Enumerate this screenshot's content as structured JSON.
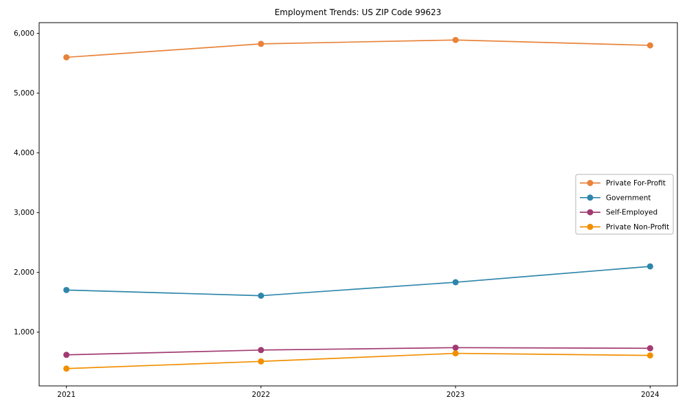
{
  "chart_data": {
    "type": "line",
    "title": "Employment Trends: US ZIP Code 99623",
    "x": [
      2021,
      2022,
      2023,
      2024
    ],
    "x_tick_labels": [
      "2021",
      "2022",
      "2023",
      "2024"
    ],
    "series": [
      {
        "name": "Private For-Profit",
        "color": "#E8833A",
        "values": [
          5600,
          5825,
          5890,
          5800
        ]
      },
      {
        "name": "Government",
        "color": "#2E86AB",
        "values": [
          1705,
          1610,
          1835,
          2100
        ]
      },
      {
        "name": "Self-Employed",
        "color": "#A23B72",
        "values": [
          620,
          700,
          740,
          730
        ]
      },
      {
        "name": "Private Non-Profit",
        "color": "#F18F01",
        "values": [
          390,
          510,
          645,
          610
        ]
      }
    ],
    "yticks": [
      1000,
      2000,
      3000,
      4000,
      5000,
      6000
    ],
    "ytick_labels": [
      "1,000",
      "2,000",
      "3,000",
      "4,000",
      "5,000",
      "6,000"
    ],
    "ylim": [
      100,
      6180
    ],
    "xlim": [
      2020.86,
      2024.14
    ],
    "grid": false,
    "legend_position": "center-right",
    "marker": "circle",
    "axis_color": "#000000",
    "background_color": "#ffffff",
    "legend_border_color": "#b4b4b4",
    "legend_background": "#ffffff"
  }
}
